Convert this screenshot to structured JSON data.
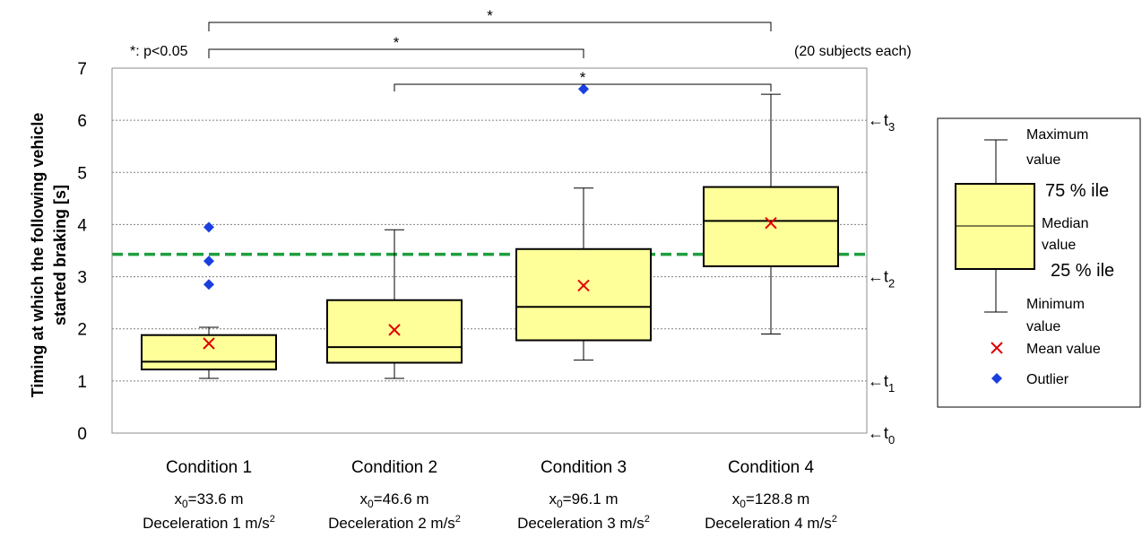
{
  "chart_data": {
    "type": "box",
    "ylabel_line1": "Timing at which the following vehicle",
    "ylabel_line2": "started braking [s]",
    "ylim": [
      0,
      7
    ],
    "yticks": [
      0,
      1,
      2,
      3,
      4,
      5,
      6,
      7
    ],
    "grid": "horizontal dotted",
    "threshold_line": {
      "y": 3.43,
      "color": "#1e9e3e",
      "style": "dashed"
    },
    "significance_note": "*: p<0.05",
    "subjects_note": "(20 subjects each)",
    "significance_brackets": [
      {
        "from": 1,
        "to": 4,
        "label": "*"
      },
      {
        "from": 1,
        "to": 3,
        "label": "*"
      },
      {
        "from": 2,
        "to": 4,
        "label": "*"
      }
    ],
    "conditions": [
      {
        "name": "Condition 1",
        "x0": "=33.6 m",
        "decel": "Deceleration 1 m/s",
        "sup": "2",
        "min": 1.05,
        "q1": 1.22,
        "median": 1.37,
        "q3": 1.88,
        "max": 2.03,
        "mean": 1.72,
        "outliers": [
          3.95,
          3.3,
          2.85
        ]
      },
      {
        "name": "Condition 2",
        "x0": "=46.6 m",
        "decel": "Deceleration 2 m/s",
        "sup": "2",
        "min": 1.05,
        "q1": 1.35,
        "median": 1.65,
        "q3": 2.55,
        "max": 3.9,
        "mean": 1.98,
        "outliers": []
      },
      {
        "name": "Condition 3",
        "x0": "=96.1 m",
        "decel": "Deceleration 3 m/s",
        "sup": "2",
        "min": 1.4,
        "q1": 1.78,
        "median": 2.42,
        "q3": 3.53,
        "max": 4.7,
        "mean": 2.83,
        "outliers": [
          6.6
        ]
      },
      {
        "name": "Condition 4",
        "x0": "=128.8 m",
        "decel": "Deceleration 4 m/s",
        "sup": "2",
        "min": 1.9,
        "q1": 3.2,
        "median": 4.07,
        "q3": 4.72,
        "max": 6.5,
        "mean": 4.03,
        "outliers": []
      }
    ],
    "time_markers": [
      {
        "y": 6,
        "label": "t",
        "sub": "3"
      },
      {
        "y": 3,
        "label": "t",
        "sub": "2"
      },
      {
        "y": 1,
        "label": "t",
        "sub": "1"
      },
      {
        "y": 0,
        "label": "t",
        "sub": "0"
      }
    ],
    "x0_symbol": "x",
    "x0_sub": "0",
    "arrow_glyph": "←",
    "legend": {
      "max_label_1": "Maximum",
      "max_label_2": "value",
      "q3_label": "75 % ile",
      "median_label_1": "Median",
      "median_label_2": "value",
      "q1_label": "25 % ile",
      "min_label_1": "Minimum",
      "min_label_2": "value",
      "mean_label": "Mean value",
      "outlier_label": "Outlier"
    },
    "colors": {
      "box_fill": "#ffff99",
      "mean": "#e00000",
      "outlier": "#1a3fe0",
      "threshold": "#1e9e3e",
      "grid": "#808080"
    }
  }
}
